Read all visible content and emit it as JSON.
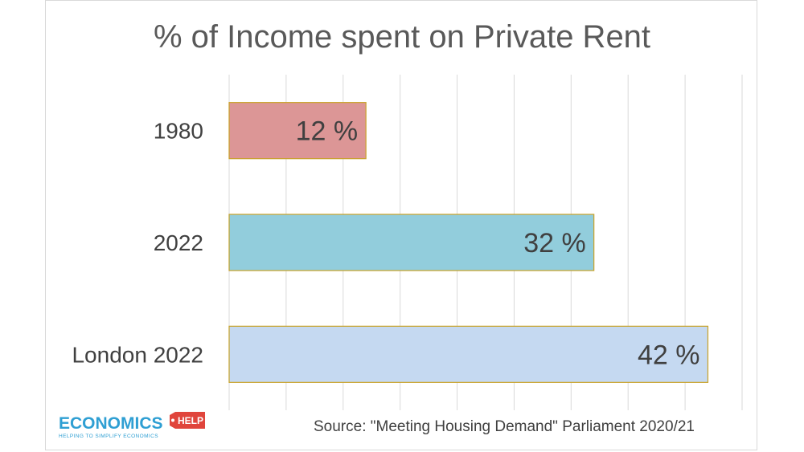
{
  "chart_data": {
    "type": "bar",
    "orientation": "horizontal",
    "title": "% of Income spent on Private Rent",
    "categories": [
      "1980",
      "2022",
      "London 2022"
    ],
    "values": [
      12,
      32,
      42
    ],
    "data_labels": [
      "12 %",
      "32 %",
      "42 %"
    ],
    "bar_colors": [
      "#dc9696",
      "#92cddc",
      "#c5d9f1"
    ],
    "bar_border_color": "#c9a227",
    "xlim": [
      0,
      45
    ],
    "grid": true,
    "legend": "none",
    "source": "Source: \"Meeting Housing Demand\" Parliament 2020/21"
  },
  "logo": {
    "main": "ECONOMICS",
    "badge": "HELP",
    "tagline": "HELPING TO SIMPLIFY ECONOMICS"
  }
}
